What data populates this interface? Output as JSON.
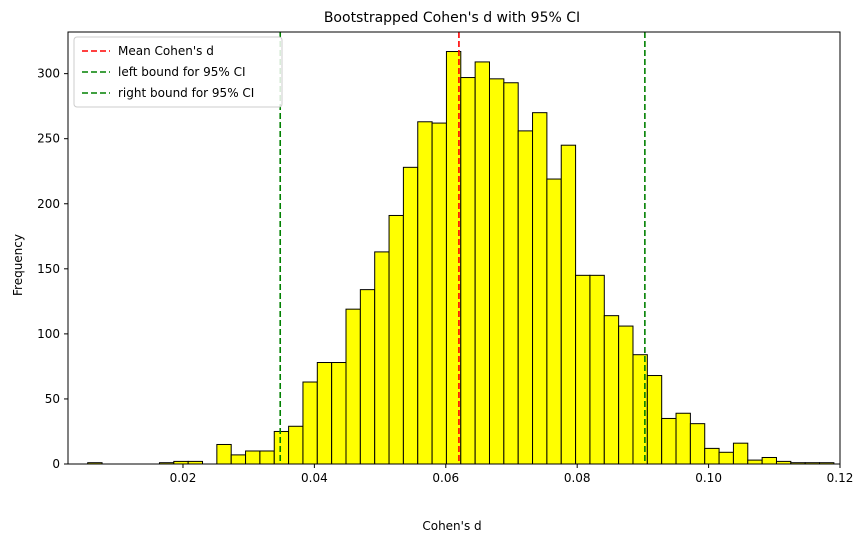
{
  "chart_data": {
    "type": "bar",
    "subtype": "histogram",
    "title": "Bootstrapped Cohen's d with 95% CI",
    "xlabel": "Cohen's d",
    "ylabel": "Frequency",
    "xlim": [
      0.0025,
      0.12
    ],
    "ylim": [
      0,
      332
    ],
    "xticks": [
      0.02,
      0.04,
      0.06,
      0.08,
      0.1,
      0.12
    ],
    "xtick_labels": [
      "0.02",
      "0.04",
      "0.06",
      "0.08",
      "0.10",
      "0.12"
    ],
    "yticks": [
      0,
      50,
      100,
      150,
      200,
      250,
      300
    ],
    "ytick_labels": [
      "0",
      "50",
      "100",
      "150",
      "200",
      "250",
      "300"
    ],
    "bin_start": 0.0055,
    "bin_width": 0.002184,
    "counts": [
      1,
      0,
      0,
      0,
      0,
      1,
      2,
      2,
      0,
      15,
      7,
      10,
      10,
      25,
      29,
      63,
      78,
      78,
      119,
      134,
      163,
      191,
      228,
      263,
      262,
      317,
      297,
      309,
      296,
      293,
      256,
      270,
      219,
      245,
      145,
      145,
      114,
      106,
      84,
      68,
      35,
      39,
      31,
      12,
      9,
      16,
      3,
      5,
      2,
      1,
      1,
      1
    ],
    "bar_color": "#ffff00",
    "bar_edge_color": "#000000",
    "vlines": [
      {
        "label": "Mean Cohen's d",
        "x": 0.062,
        "color": "#ff0000",
        "style": "dashed"
      },
      {
        "label": "left bound for 95% CI",
        "x": 0.0348,
        "color": "#008000",
        "style": "dashed"
      },
      {
        "label": "right bound for 95% CI",
        "x": 0.0903,
        "color": "#008000",
        "style": "dashed"
      }
    ],
    "legend_position": "top-left",
    "grid": false
  }
}
